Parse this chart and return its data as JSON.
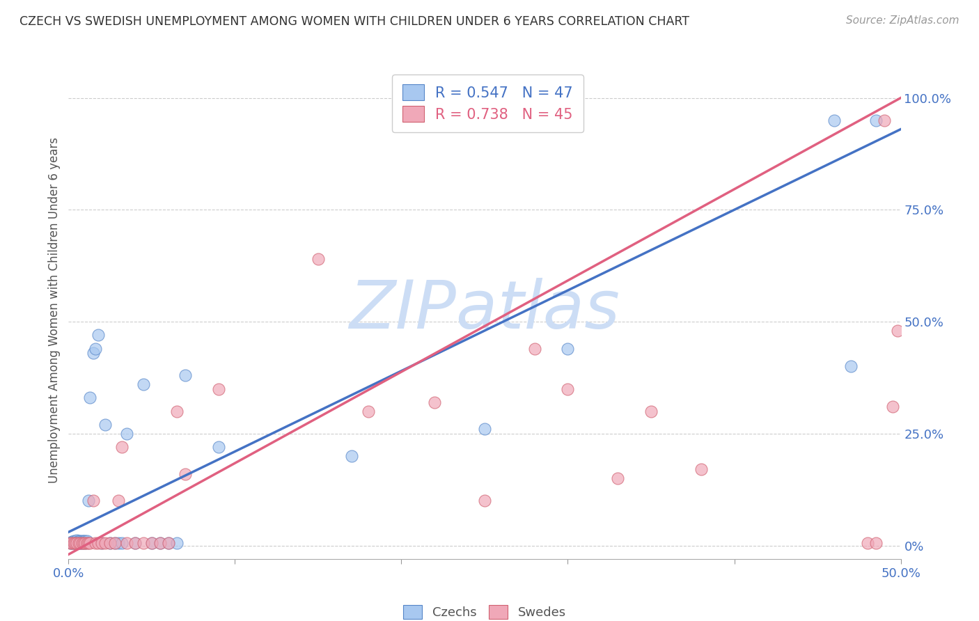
{
  "title": "CZECH VS SWEDISH UNEMPLOYMENT AMONG WOMEN WITH CHILDREN UNDER 6 YEARS CORRELATION CHART",
  "source": "Source: ZipAtlas.com",
  "ylabel": "Unemployment Among Women with Children Under 6 years",
  "xlim": [
    0.0,
    0.5
  ],
  "ylim": [
    -0.03,
    1.08
  ],
  "xticks": [
    0.0,
    0.1,
    0.2,
    0.3,
    0.4,
    0.5
  ],
  "xticklabels_show": [
    "0.0%",
    "",
    "",
    "",
    "",
    "50.0%"
  ],
  "yticks": [
    0.0,
    0.25,
    0.5,
    0.75,
    1.0
  ],
  "yticklabels": [
    "0%",
    "25.0%",
    "50.0%",
    "75.0%",
    "100.0%"
  ],
  "czechs_fill": "#a8c8f0",
  "czechs_edge": "#5585c8",
  "swedes_fill": "#f0a8b8",
  "swedes_edge": "#d06070",
  "czechs_line_color": "#4472c4",
  "swedes_line_color": "#e06080",
  "legend_czechs_R": "0.547",
  "legend_czechs_N": "47",
  "legend_swedes_R": "0.738",
  "legend_swedes_N": "45",
  "watermark": "ZIPatlas",
  "watermark_color": "#ccddf5",
  "title_color": "#333333",
  "tick_color": "#4472c4",
  "grid_color": "#cccccc",
  "czechs_x": [
    0.001,
    0.002,
    0.002,
    0.003,
    0.003,
    0.003,
    0.004,
    0.004,
    0.005,
    0.005,
    0.005,
    0.006,
    0.006,
    0.007,
    0.007,
    0.008,
    0.008,
    0.009,
    0.01,
    0.01,
    0.011,
    0.012,
    0.013,
    0.015,
    0.016,
    0.018,
    0.02,
    0.022,
    0.025,
    0.028,
    0.03,
    0.032,
    0.035,
    0.04,
    0.045,
    0.05,
    0.055,
    0.06,
    0.065,
    0.07,
    0.09,
    0.17,
    0.25,
    0.3,
    0.46,
    0.47,
    0.485
  ],
  "czechs_y": [
    0.005,
    0.005,
    0.008,
    0.005,
    0.008,
    0.01,
    0.005,
    0.008,
    0.005,
    0.008,
    0.012,
    0.005,
    0.01,
    0.005,
    0.01,
    0.005,
    0.01,
    0.01,
    0.005,
    0.01,
    0.01,
    0.1,
    0.33,
    0.43,
    0.44,
    0.47,
    0.005,
    0.27,
    0.005,
    0.005,
    0.005,
    0.005,
    0.25,
    0.005,
    0.36,
    0.005,
    0.005,
    0.005,
    0.005,
    0.38,
    0.22,
    0.2,
    0.26,
    0.44,
    0.95,
    0.4,
    0.95
  ],
  "swedes_x": [
    0.001,
    0.002,
    0.003,
    0.004,
    0.005,
    0.006,
    0.007,
    0.008,
    0.009,
    0.01,
    0.011,
    0.012,
    0.013,
    0.015,
    0.016,
    0.018,
    0.02,
    0.022,
    0.025,
    0.028,
    0.03,
    0.032,
    0.035,
    0.04,
    0.045,
    0.05,
    0.055,
    0.06,
    0.065,
    0.07,
    0.09,
    0.15,
    0.18,
    0.22,
    0.25,
    0.28,
    0.3,
    0.33,
    0.35,
    0.38,
    0.48,
    0.485,
    0.49,
    0.495,
    0.498
  ],
  "swedes_y": [
    0.005,
    0.005,
    0.005,
    0.005,
    0.005,
    0.005,
    0.005,
    0.005,
    0.005,
    0.005,
    0.005,
    0.005,
    0.005,
    0.1,
    0.005,
    0.005,
    0.005,
    0.005,
    0.005,
    0.005,
    0.1,
    0.22,
    0.005,
    0.005,
    0.005,
    0.005,
    0.005,
    0.005,
    0.3,
    0.16,
    0.35,
    0.64,
    0.3,
    0.32,
    0.1,
    0.44,
    0.35,
    0.15,
    0.3,
    0.17,
    0.005,
    0.005,
    0.95,
    0.31,
    0.48
  ],
  "blue_line_x0": 0.0,
  "blue_line_y0": 0.03,
  "blue_line_x1": 0.5,
  "blue_line_y1": 0.93,
  "pink_line_x0": 0.0,
  "pink_line_y0": -0.02,
  "pink_line_x1": 0.5,
  "pink_line_y1": 1.0
}
